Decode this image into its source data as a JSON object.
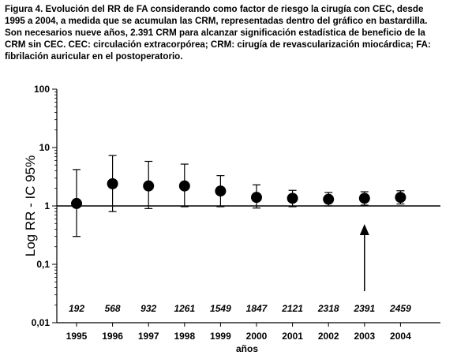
{
  "caption": "Figura 4. Evolución del RR de FA considerando como factor de riesgo la cirugía con CEC, desde\n1995 a 2004, a medida que se acumulan las CRM, representadas dentro del gráfico en bastardilla.\nSon necesarios nueve años, 2.391 CRM para alcanzar significación estadística de beneficio de la\nCRM sin CEC. CEC: circulación extracorpórea; CRM: cirugía de revascularización miocárdica; FA:\nfibrilación auricular en el postoperatorio.",
  "chart_data": {
    "type": "scatter",
    "title": "",
    "xlabel": "años",
    "ylabel": "Log RR - IC 95%",
    "yscale": "log",
    "ylim": [
      0.01,
      100
    ],
    "yticks": [
      {
        "value": 100,
        "label": "100"
      },
      {
        "value": 10,
        "label": "10"
      },
      {
        "value": 1,
        "label": "1"
      },
      {
        "value": 0.1,
        "label": "0,1"
      },
      {
        "value": 0.01,
        "label": "0,01"
      }
    ],
    "reference_line": 1,
    "categories": [
      "1995",
      "1996",
      "1997",
      "1998",
      "1999",
      "2000",
      "2001",
      "2002",
      "2003",
      "2004"
    ],
    "rr": [
      1.1,
      2.4,
      2.2,
      2.2,
      1.8,
      1.4,
      1.35,
      1.3,
      1.35,
      1.4
    ],
    "ci_low": [
      0.3,
      0.8,
      0.9,
      0.97,
      0.97,
      0.92,
      0.97,
      1.0,
      1.03,
      1.08
    ],
    "ci_high": [
      4.2,
      7.3,
      5.8,
      5.2,
      3.3,
      2.3,
      1.85,
      1.7,
      1.75,
      1.82
    ],
    "cumulative_crm": [
      "192",
      "568",
      "932",
      "1261",
      "1549",
      "1847",
      "2121",
      "2318",
      "2391",
      "2459"
    ],
    "arrow_at": "2003",
    "grid": false
  }
}
